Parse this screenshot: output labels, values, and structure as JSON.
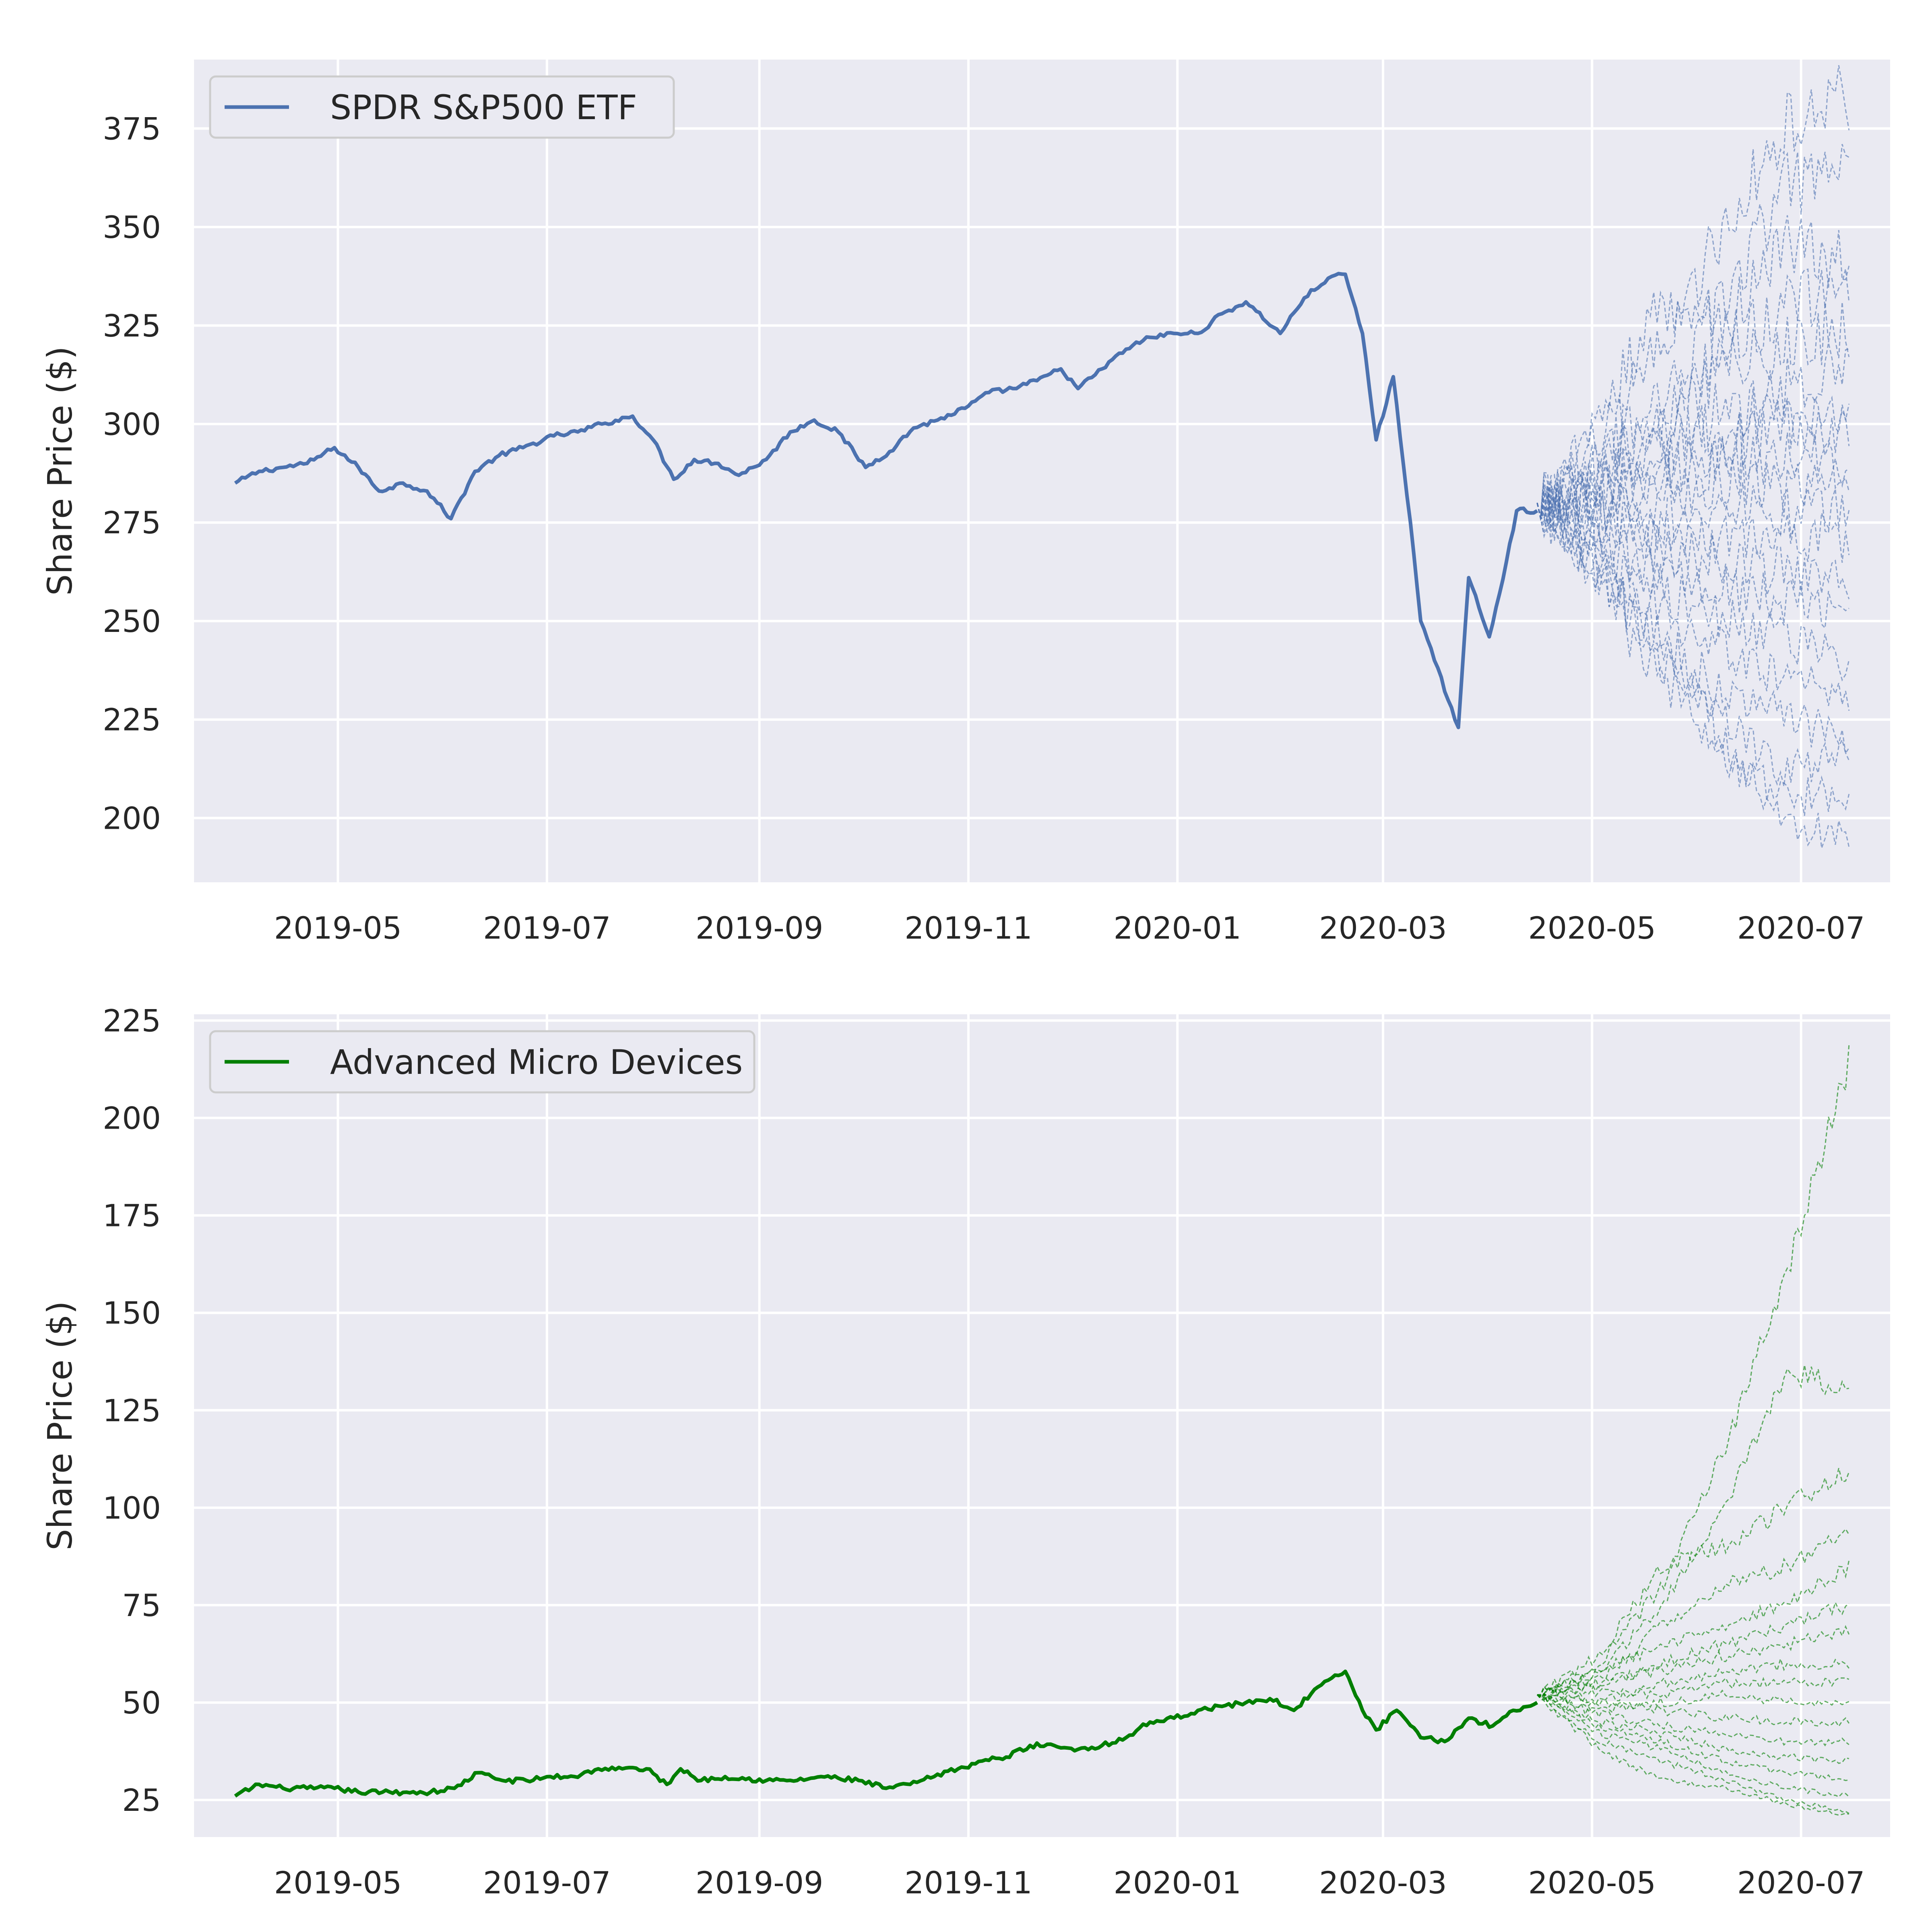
{
  "chart_data": [
    {
      "type": "line",
      "title": "",
      "xlabel": "",
      "ylabel": "Share Price ($)",
      "x_range": [
        "2019-03-20",
        "2020-07-27"
      ],
      "x_ticks": [
        "2019-05",
        "2019-07",
        "2019-09",
        "2019-11",
        "2020-01",
        "2020-03",
        "2020-05",
        "2020-07"
      ],
      "ylim": [
        183.7,
        392.5
      ],
      "y_ticks": [
        200,
        225,
        250,
        275,
        300,
        325,
        350,
        375
      ],
      "grid": true,
      "legend": {
        "placement": "top-left",
        "entries": [
          "SPDR S&P500 ETF"
        ]
      },
      "colors": {
        "line": "#4c72b0",
        "background": "#eaeaf2",
        "grid": "#ffffff"
      },
      "series": [
        {
          "name": "SPDR S&P500 ETF",
          "style": "solid",
          "points": [
            [
              "2019-04-01",
              285
            ],
            [
              "2019-04-08",
              288
            ],
            [
              "2019-04-15",
              289
            ],
            [
              "2019-04-22",
              290
            ],
            [
              "2019-04-30",
              294
            ],
            [
              "2019-05-07",
              289
            ],
            [
              "2019-05-13",
              283
            ],
            [
              "2019-05-20",
              285
            ],
            [
              "2019-05-27",
              283
            ],
            [
              "2019-06-03",
              276
            ],
            [
              "2019-06-10",
              288
            ],
            [
              "2019-06-17",
              292
            ],
            [
              "2019-06-24",
              294
            ],
            [
              "2019-07-03",
              297
            ],
            [
              "2019-07-10",
              298
            ],
            [
              "2019-07-17",
              300
            ],
            [
              "2019-07-26",
              302
            ],
            [
              "2019-08-01",
              296
            ],
            [
              "2019-08-07",
              286
            ],
            [
              "2019-08-13",
              291
            ],
            [
              "2019-08-20",
              290
            ],
            [
              "2019-08-26",
              287
            ],
            [
              "2019-09-03",
              291
            ],
            [
              "2019-09-10",
              298
            ],
            [
              "2019-09-17",
              301
            ],
            [
              "2019-09-24",
              298
            ],
            [
              "2019-10-02",
              289
            ],
            [
              "2019-10-09",
              293
            ],
            [
              "2019-10-16",
              299
            ],
            [
              "2019-10-23",
              301
            ],
            [
              "2019-10-31",
              304
            ],
            [
              "2019-11-07",
              308
            ],
            [
              "2019-11-14",
              309
            ],
            [
              "2019-11-21",
              311
            ],
            [
              "2019-11-28",
              314
            ],
            [
              "2019-12-03",
              309
            ],
            [
              "2019-12-10",
              314
            ],
            [
              "2019-12-17",
              319
            ],
            [
              "2019-12-24",
              322
            ],
            [
              "2019-12-31",
              323
            ],
            [
              "2020-01-07",
              323
            ],
            [
              "2020-01-14",
              328
            ],
            [
              "2020-01-21",
              331
            ],
            [
              "2020-01-31",
              323
            ],
            [
              "2020-02-07",
              332
            ],
            [
              "2020-02-14",
              337
            ],
            [
              "2020-02-19",
              338
            ],
            [
              "2020-02-24",
              323
            ],
            [
              "2020-02-28",
              296
            ],
            [
              "2020-03-04",
              312
            ],
            [
              "2020-03-09",
              275
            ],
            [
              "2020-03-12",
              250
            ],
            [
              "2020-03-16",
              240
            ],
            [
              "2020-03-23",
              223
            ],
            [
              "2020-03-26",
              261
            ],
            [
              "2020-04-01",
              246
            ],
            [
              "2020-04-06",
              265
            ],
            [
              "2020-04-09",
              278
            ],
            [
              "2020-04-15",
              278
            ]
          ]
        },
        {
          "name": "",
          "style": "dashed-fan",
          "start": [
            "2020-04-15",
            280
          ],
          "end_date": "2020-07-15",
          "paths": [
            [
              280,
              295,
              320,
              350,
              375,
              384
            ],
            [
              280,
              290,
              310,
              330,
              360,
              363
            ],
            [
              280,
              300,
              330,
              325,
              345,
              340
            ],
            [
              280,
              285,
              305,
              320,
              330,
              335
            ],
            [
              280,
              290,
              300,
              315,
              320,
              325
            ],
            [
              280,
              282,
              295,
              300,
              310,
              315
            ],
            [
              280,
              285,
              290,
              305,
              300,
              305
            ],
            [
              280,
              278,
              288,
              295,
              300,
              298
            ],
            [
              280,
              283,
              285,
              290,
              292,
              290
            ],
            [
              280,
              276,
              280,
              285,
              283,
              285
            ],
            [
              280,
              279,
              275,
              280,
              278,
              278
            ],
            [
              280,
              275,
              272,
              270,
              272,
              270
            ],
            [
              280,
              273,
              268,
              265,
              262,
              262
            ],
            [
              280,
              270,
              262,
              258,
              255,
              250
            ],
            [
              280,
              268,
              258,
              250,
              245,
              240
            ],
            [
              280,
              266,
              252,
              242,
              235,
              230
            ],
            [
              280,
              262,
              245,
              232,
              225,
              220
            ],
            [
              280,
              265,
              240,
              225,
              212,
              215
            ],
            [
              280,
              258,
              235,
              215,
              205,
              206
            ],
            [
              280,
              260,
              245,
              220,
              198,
              195
            ]
          ]
        }
      ]
    },
    {
      "type": "line",
      "title": "",
      "xlabel": "",
      "ylabel": "Share Price ($)",
      "x_range": [
        "2019-03-20",
        "2020-07-27"
      ],
      "x_ticks": [
        "2019-05",
        "2019-07",
        "2019-09",
        "2019-11",
        "2020-01",
        "2020-03",
        "2020-05",
        "2020-07"
      ],
      "ylim": [
        15.5,
        226.6
      ],
      "y_ticks": [
        25,
        50,
        75,
        100,
        125,
        150,
        175,
        200,
        225
      ],
      "grid": true,
      "legend": {
        "placement": "top-left",
        "entries": [
          "Advanced Micro Devices"
        ]
      },
      "colors": {
        "line": "#007f00",
        "background": "#eaeaf2",
        "grid": "#ffffff"
      },
      "series": [
        {
          "name": "Advanced Micro Devices",
          "style": "solid",
          "points": [
            [
              "2019-04-01",
              26
            ],
            [
              "2019-04-08",
              29
            ],
            [
              "2019-04-15",
              28
            ],
            [
              "2019-04-22",
              28
            ],
            [
              "2019-04-30",
              28
            ],
            [
              "2019-05-07",
              27
            ],
            [
              "2019-05-14",
              27
            ],
            [
              "2019-05-21",
              27
            ],
            [
              "2019-05-28",
              27
            ],
            [
              "2019-06-04",
              28
            ],
            [
              "2019-06-11",
              32
            ],
            [
              "2019-06-18",
              30
            ],
            [
              "2019-06-25",
              30
            ],
            [
              "2019-07-02",
              31
            ],
            [
              "2019-07-09",
              31
            ],
            [
              "2019-07-16",
              33
            ],
            [
              "2019-07-23",
              33
            ],
            [
              "2019-07-30",
              33
            ],
            [
              "2019-08-05",
              29
            ],
            [
              "2019-08-09",
              33
            ],
            [
              "2019-08-15",
              30
            ],
            [
              "2019-08-22",
              31
            ],
            [
              "2019-09-03",
              30
            ],
            [
              "2019-09-12",
              30
            ],
            [
              "2019-09-19",
              31
            ],
            [
              "2019-09-30",
              30
            ],
            [
              "2019-10-08",
              28
            ],
            [
              "2019-10-15",
              29
            ],
            [
              "2019-10-22",
              31
            ],
            [
              "2019-10-29",
              33
            ],
            [
              "2019-11-05",
              35
            ],
            [
              "2019-11-12",
              36
            ],
            [
              "2019-11-19",
              39
            ],
            [
              "2019-11-26",
              39
            ],
            [
              "2019-12-03",
              38
            ],
            [
              "2019-12-10",
              39
            ],
            [
              "2019-12-17",
              41
            ],
            [
              "2019-12-24",
              45
            ],
            [
              "2019-12-31",
              46
            ],
            [
              "2020-01-07",
              48
            ],
            [
              "2020-01-14",
              49
            ],
            [
              "2020-01-21",
              50
            ],
            [
              "2020-01-28",
              51
            ],
            [
              "2020-02-04",
              48
            ],
            [
              "2020-02-11",
              54
            ],
            [
              "2020-02-19",
              58
            ],
            [
              "2020-02-24",
              48
            ],
            [
              "2020-02-28",
              43
            ],
            [
              "2020-03-05",
              48
            ],
            [
              "2020-03-12",
              41
            ],
            [
              "2020-03-19",
              40
            ],
            [
              "2020-03-26",
              46
            ],
            [
              "2020-04-02",
              44
            ],
            [
              "2020-04-08",
              48
            ],
            [
              "2020-04-15",
              50
            ]
          ]
        },
        {
          "name": "",
          "style": "dashed-fan",
          "start": [
            "2020-04-15",
            52
          ],
          "end_date": "2020-07-15",
          "paths": [
            [
              52,
              60,
              80,
              115,
              160,
              215
            ],
            [
              52,
              58,
              75,
              100,
              135,
              130
            ],
            [
              52,
              62,
              85,
              90,
              100,
              110
            ],
            [
              52,
              55,
              70,
              80,
              85,
              95
            ],
            [
              52,
              58,
              65,
              70,
              75,
              85
            ],
            [
              52,
              54,
              60,
              65,
              70,
              75
            ],
            [
              52,
              56,
              58,
              62,
              65,
              68
            ],
            [
              52,
              50,
              55,
              58,
              60,
              60
            ],
            [
              52,
              53,
              52,
              55,
              55,
              55
            ],
            [
              52,
              48,
              50,
              52,
              50,
              50
            ],
            [
              52,
              50,
              48,
              46,
              45,
              45
            ],
            [
              52,
              47,
              44,
              42,
              40,
              40
            ],
            [
              52,
              45,
              42,
              38,
              36,
              35
            ],
            [
              52,
              44,
              40,
              35,
              32,
              30
            ],
            [
              52,
              42,
              38,
              32,
              28,
              26
            ],
            [
              52,
              40,
              35,
              30,
              25,
              22
            ],
            [
              52,
              38,
              30,
              28,
              24,
              21
            ]
          ]
        }
      ]
    }
  ]
}
